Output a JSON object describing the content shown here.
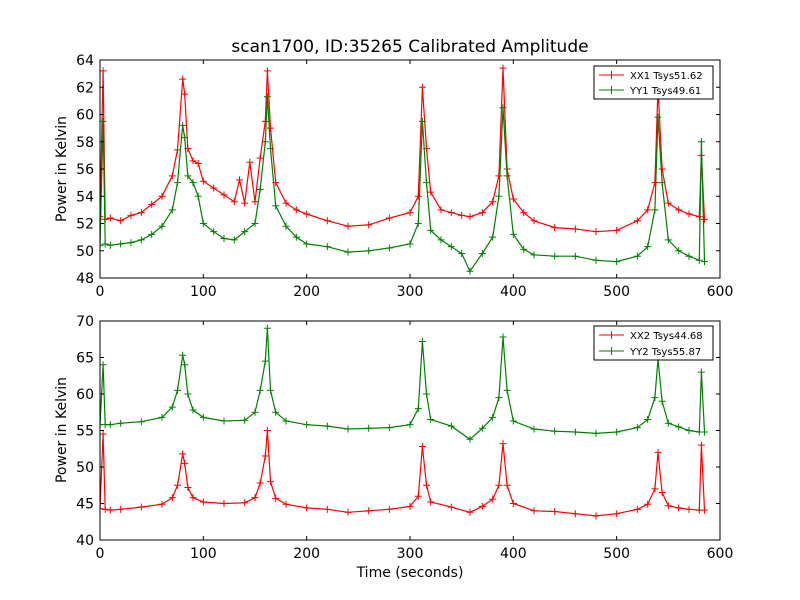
{
  "figure": {
    "title": "scan1700, ID:35265 Calibrated Amplitude"
  },
  "colors": {
    "xx": "#ff0000",
    "yy": "#008000",
    "axes": "#000000",
    "background": "#ffffff"
  },
  "chart_data": [
    {
      "type": "line",
      "panel": "top",
      "title": "scan1700, ID:35265 Calibrated Amplitude",
      "xlabel": "",
      "ylabel": "Power in Kelvin",
      "xlim": [
        0,
        600
      ],
      "ylim": [
        48,
        64
      ],
      "xticks": [
        "0",
        "100",
        "200",
        "300",
        "400",
        "500",
        "600"
      ],
      "yticks": [
        "48",
        "50",
        "52",
        "54",
        "56",
        "58",
        "60",
        "62",
        "64"
      ],
      "grid": false,
      "legend": "top-right",
      "marker": "+",
      "series": [
        {
          "name": "XX1 Tsys51.62",
          "color": "#ff0000",
          "x": [
            0,
            3,
            5,
            10,
            20,
            30,
            40,
            50,
            60,
            70,
            75,
            80,
            82,
            85,
            90,
            95,
            100,
            110,
            120,
            130,
            135,
            140,
            145,
            150,
            155,
            160,
            162,
            165,
            170,
            180,
            190,
            200,
            220,
            240,
            260,
            280,
            300,
            308,
            312,
            316,
            320,
            330,
            340,
            350,
            358,
            370,
            380,
            386,
            390,
            394,
            400,
            410,
            420,
            440,
            460,
            480,
            500,
            520,
            530,
            537,
            540,
            544,
            550,
            560,
            570,
            580,
            582,
            585
          ],
          "y": [
            52.5,
            63.2,
            52.3,
            52.4,
            52.2,
            52.6,
            52.8,
            53.4,
            54.0,
            55.5,
            57.4,
            62.6,
            61.5,
            57.5,
            56.6,
            56.4,
            55.1,
            54.6,
            54.1,
            53.6,
            55.2,
            53.5,
            56.5,
            53.6,
            56.8,
            59.5,
            63.2,
            59.0,
            55.0,
            53.5,
            53.0,
            52.7,
            52.2,
            51.8,
            51.9,
            52.4,
            52.8,
            54.0,
            62.0,
            57.5,
            54.3,
            53.0,
            52.8,
            52.6,
            52.5,
            52.8,
            53.6,
            55.5,
            63.4,
            56.0,
            53.8,
            52.8,
            52.2,
            51.7,
            51.6,
            51.4,
            51.5,
            52.2,
            53.0,
            55.0,
            62.0,
            56.0,
            53.5,
            53.0,
            52.7,
            52.5,
            57.0,
            52.3
          ]
        },
        {
          "name": "YY1 Tsys49.61",
          "color": "#008000",
          "x": [
            0,
            3,
            5,
            10,
            20,
            30,
            40,
            50,
            60,
            70,
            75,
            80,
            82,
            85,
            90,
            95,
            100,
            110,
            120,
            130,
            140,
            150,
            155,
            160,
            162,
            165,
            170,
            180,
            190,
            200,
            220,
            240,
            260,
            280,
            300,
            308,
            312,
            316,
            320,
            330,
            340,
            350,
            358,
            370,
            380,
            386,
            390,
            394,
            400,
            410,
            420,
            440,
            460,
            480,
            500,
            520,
            530,
            537,
            540,
            544,
            550,
            560,
            570,
            580,
            582,
            585
          ],
          "y": [
            50.4,
            59.5,
            50.5,
            50.4,
            50.5,
            50.6,
            50.8,
            51.2,
            51.8,
            53.0,
            55.0,
            59.2,
            58.3,
            55.5,
            55.0,
            54.0,
            52.0,
            51.4,
            50.9,
            50.8,
            51.4,
            52.0,
            54.5,
            58.0,
            61.3,
            57.5,
            53.3,
            51.8,
            51.0,
            50.5,
            50.3,
            49.9,
            50.0,
            50.2,
            50.5,
            52.0,
            59.5,
            55.0,
            51.5,
            50.8,
            50.3,
            49.8,
            48.5,
            49.8,
            51.0,
            54.0,
            60.5,
            55.5,
            51.2,
            50.1,
            49.7,
            49.6,
            49.6,
            49.3,
            49.2,
            49.6,
            50.3,
            53.0,
            59.8,
            55.0,
            50.8,
            50.0,
            49.6,
            49.3,
            58.0,
            49.2
          ]
        }
      ]
    },
    {
      "type": "line",
      "panel": "bottom",
      "title": "",
      "xlabel": "Time (seconds)",
      "ylabel": "Power in Kelvin",
      "xlim": [
        0,
        600
      ],
      "ylim": [
        40,
        70
      ],
      "xticks": [
        "0",
        "100",
        "200",
        "300",
        "400",
        "500",
        "600"
      ],
      "yticks": [
        "40",
        "45",
        "50",
        "55",
        "60",
        "65",
        "70"
      ],
      "grid": false,
      "legend": "top-right",
      "marker": "+",
      "series": [
        {
          "name": "XX2 Tsys44.68",
          "color": "#ff0000",
          "x": [
            0,
            3,
            5,
            10,
            20,
            40,
            60,
            70,
            75,
            80,
            82,
            85,
            90,
            100,
            120,
            140,
            150,
            155,
            160,
            162,
            165,
            170,
            180,
            200,
            220,
            240,
            260,
            280,
            300,
            308,
            312,
            316,
            320,
            340,
            358,
            370,
            380,
            386,
            390,
            394,
            400,
            420,
            440,
            460,
            480,
            500,
            520,
            530,
            537,
            540,
            544,
            550,
            560,
            570,
            580,
            582,
            585
          ],
          "y": [
            44.3,
            54.5,
            44.2,
            44.1,
            44.2,
            44.5,
            44.9,
            45.8,
            47.5,
            51.8,
            50.5,
            47.2,
            45.8,
            45.2,
            45.0,
            45.1,
            45.8,
            47.8,
            51.5,
            55.0,
            48.0,
            45.7,
            44.9,
            44.4,
            44.2,
            43.8,
            44.0,
            44.2,
            44.6,
            46.0,
            52.8,
            47.5,
            45.2,
            44.5,
            43.8,
            44.6,
            45.6,
            47.5,
            53.2,
            47.5,
            45.0,
            44.0,
            43.9,
            43.6,
            43.3,
            43.6,
            44.2,
            44.9,
            47.0,
            52.0,
            46.5,
            44.7,
            44.4,
            44.2,
            44.1,
            53.0,
            44.1
          ]
        },
        {
          "name": "YY2 Tsys55.87",
          "color": "#008000",
          "x": [
            0,
            3,
            5,
            10,
            20,
            40,
            60,
            70,
            75,
            80,
            82,
            85,
            90,
            100,
            120,
            140,
            150,
            155,
            160,
            162,
            165,
            170,
            180,
            200,
            220,
            240,
            260,
            280,
            300,
            308,
            312,
            316,
            320,
            340,
            358,
            370,
            380,
            386,
            390,
            394,
            400,
            420,
            440,
            460,
            480,
            500,
            520,
            530,
            537,
            540,
            544,
            550,
            560,
            570,
            580,
            582,
            585
          ],
          "y": [
            55.8,
            64.0,
            55.8,
            55.8,
            56.0,
            56.2,
            56.8,
            58.2,
            60.5,
            65.3,
            64.0,
            60.0,
            57.8,
            56.8,
            56.3,
            56.4,
            57.5,
            60.5,
            64.5,
            69.0,
            60.5,
            57.5,
            56.3,
            55.8,
            55.6,
            55.2,
            55.3,
            55.4,
            55.8,
            58.0,
            67.2,
            60.0,
            56.5,
            55.6,
            53.8,
            55.3,
            56.8,
            59.5,
            67.8,
            60.5,
            56.3,
            55.2,
            54.9,
            54.8,
            54.6,
            54.8,
            55.4,
            56.5,
            59.5,
            64.8,
            59.0,
            56.0,
            55.5,
            55.0,
            54.8,
            63.0,
            54.8
          ]
        }
      ]
    }
  ]
}
